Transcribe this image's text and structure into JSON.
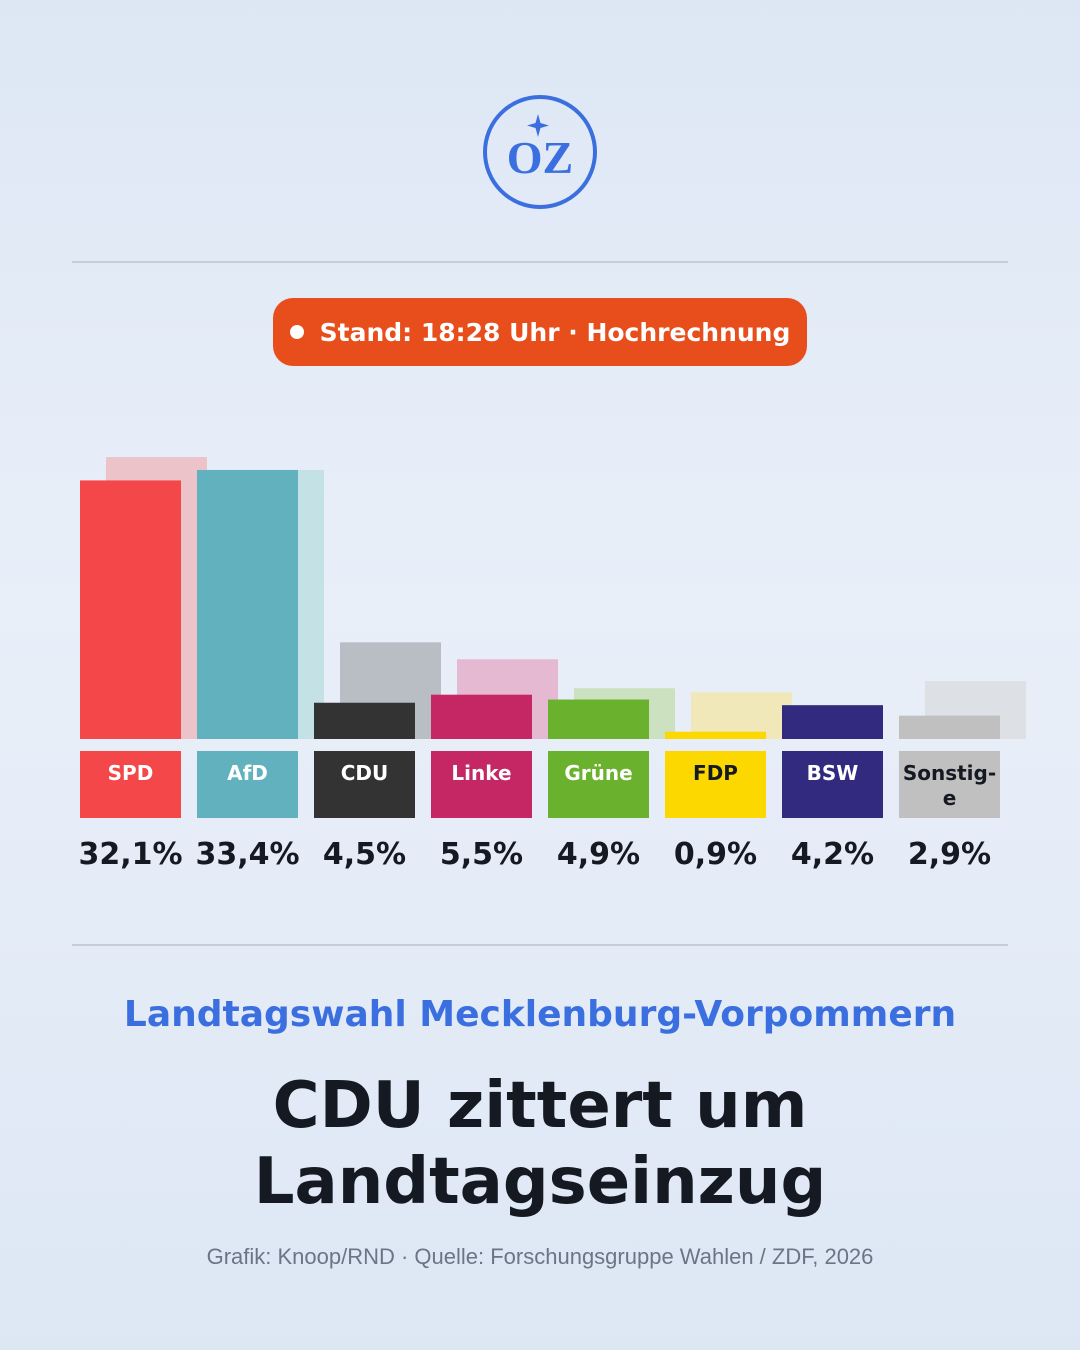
{
  "brand": {
    "logo_text": "OZ",
    "logo_color": "#3b6fe0"
  },
  "status_badge": {
    "text": "Stand: 18:28 Uhr · Hochrechnung",
    "color": "#e84e1b"
  },
  "chart_data": {
    "type": "bar",
    "categories": [
      "SPD",
      "AfD",
      "CDU",
      "Linke",
      "Grüne",
      "FDP",
      "BSW",
      "Sonstig-e"
    ],
    "category_lines": [
      [
        "SPD"
      ],
      [
        "AfD"
      ],
      [
        "CDU"
      ],
      [
        "Linke"
      ],
      [
        "Grüne"
      ],
      [
        "FDP"
      ],
      [
        "BSW"
      ],
      [
        "Sonstig-",
        "e"
      ]
    ],
    "values": [
      32.1,
      33.4,
      4.5,
      5.5,
      4.9,
      0.9,
      4.2,
      2.9
    ],
    "value_labels": [
      "32,1%",
      "33,4%",
      "4,5%",
      "5,5%",
      "4,9%",
      "0,9%",
      "4,2%",
      "2,9%"
    ],
    "previous_values": [
      35.0,
      33.4,
      12.0,
      9.9,
      6.3,
      5.8,
      0,
      7.2
    ],
    "colors": [
      "#f4474a",
      "#61b2be",
      "#333333",
      "#c42763",
      "#6ab22d",
      "#fcd800",
      "#322a7f",
      "#c0c0c0"
    ],
    "previous_colors": [
      "#ecc3c9",
      "#c4e1e6",
      "#b9bdc4",
      "#e6b9d3",
      "#cbe1c0",
      "#f0e8b8",
      "#d7d8e0",
      "#dde1e6"
    ],
    "label_text_colors": [
      "#ffffff",
      "#ffffff",
      "#ffffff",
      "#ffffff",
      "#ffffff",
      "#151a22",
      "#ffffff",
      "#151a22"
    ],
    "ylim": [
      0,
      36
    ]
  },
  "footer": {
    "subtitle": "Landtagswahl Mecklenburg-Vorpommern",
    "headline_line1": "CDU zittert um",
    "headline_line2": "Landtagseinzug",
    "source": "Grafik: Knoop/RND · Quelle: Forschungsgruppe Wahlen / ZDF, 2026"
  }
}
